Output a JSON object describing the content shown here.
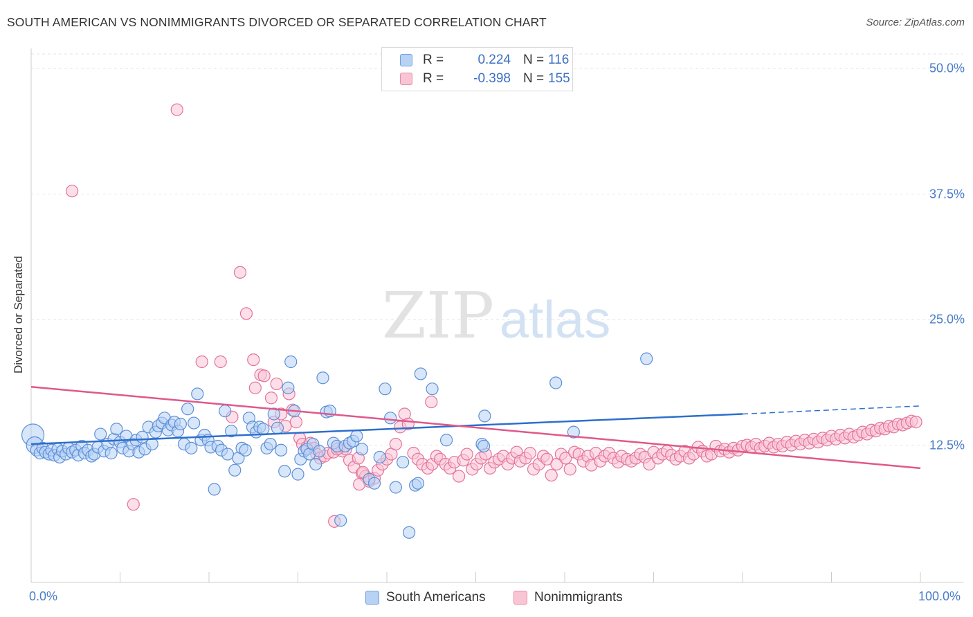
{
  "title": "SOUTH AMERICAN VS NONIMMIGRANTS DIVORCED OR SEPARATED CORRELATION CHART",
  "source": "Source: ZipAtlas.com",
  "watermark": {
    "zip": "ZIP",
    "atlas": "atlas"
  },
  "legend": {
    "r_label": "R =",
    "n_label": "N =",
    "rows": [
      {
        "r": "0.224",
        "n": "116",
        "swatch_fill": "#b8d2f5",
        "swatch_stroke": "#6f9edc"
      },
      {
        "r": "-0.398",
        "n": "155",
        "swatch_fill": "#f9c5d5",
        "swatch_stroke": "#e88aa6"
      }
    ]
  },
  "bottom_legend": [
    "South Americans",
    "Nonimmigrants"
  ],
  "chart_data": {
    "type": "scatter",
    "title": "SOUTH AMERICAN VS NONIMMIGRANTS DIVORCED OR SEPARATED CORRELATION CHART",
    "xlabel": "",
    "ylabel": "Divorced or Separated",
    "xlim": [
      0,
      100
    ],
    "ylim": [
      0,
      52
    ],
    "x_tick_labels": [
      "0.0%",
      "100.0%"
    ],
    "y_ticks": [
      12.5,
      25.0,
      37.5,
      50.0
    ],
    "y_tick_labels": [
      "12.5%",
      "25.0%",
      "37.5%",
      "50.0%"
    ],
    "grid": true,
    "legend_position": "top-center",
    "series": [
      {
        "name": "South Americans",
        "color": "#5b8fd6",
        "fill": "#b8d2f5",
        "r": 0.224,
        "n": 116,
        "trend": {
          "x0": 0,
          "y0": 12.6,
          "x1": 80,
          "y1": 15.6,
          "dash_to_x": 100,
          "dash_to_y": 16.4,
          "color": "#2d6fcc"
        },
        "points": [
          [
            0.2,
            13.5
          ],
          [
            0.4,
            12.5
          ],
          [
            0.6,
            12.0
          ],
          [
            1.0,
            11.7
          ],
          [
            1.3,
            12.2
          ],
          [
            1.6,
            11.8
          ],
          [
            2.0,
            11.6
          ],
          [
            2.3,
            12.0
          ],
          [
            2.6,
            11.5
          ],
          [
            3.0,
            12.1
          ],
          [
            3.2,
            11.3
          ],
          [
            3.5,
            11.9
          ],
          [
            3.9,
            11.6
          ],
          [
            4.2,
            12.2
          ],
          [
            4.6,
            11.8
          ],
          [
            5.0,
            12.0
          ],
          [
            5.3,
            11.5
          ],
          [
            5.7,
            12.4
          ],
          [
            6.0,
            11.7
          ],
          [
            6.4,
            12.0
          ],
          [
            6.8,
            11.4
          ],
          [
            7.1,
            11.6
          ],
          [
            7.5,
            12.3
          ],
          [
            7.8,
            13.6
          ],
          [
            8.2,
            11.9
          ],
          [
            8.6,
            12.6
          ],
          [
            9.0,
            11.7
          ],
          [
            9.3,
            13.1
          ],
          [
            9.6,
            14.1
          ],
          [
            10.0,
            12.8
          ],
          [
            10.3,
            12.2
          ],
          [
            10.7,
            13.4
          ],
          [
            11.0,
            11.9
          ],
          [
            11.4,
            12.6
          ],
          [
            11.8,
            13.0
          ],
          [
            12.1,
            11.8
          ],
          [
            12.5,
            13.3
          ],
          [
            12.8,
            12.1
          ],
          [
            13.2,
            14.3
          ],
          [
            13.6,
            12.6
          ],
          [
            14.0,
            13.8
          ],
          [
            14.3,
            14.4
          ],
          [
            14.7,
            14.7
          ],
          [
            15.0,
            15.2
          ],
          [
            15.4,
            14.0
          ],
          [
            15.8,
            14.5
          ],
          [
            16.1,
            14.8
          ],
          [
            16.5,
            13.9
          ],
          [
            16.8,
            14.6
          ],
          [
            17.2,
            12.6
          ],
          [
            17.6,
            16.1
          ],
          [
            18.0,
            12.2
          ],
          [
            18.3,
            14.7
          ],
          [
            18.7,
            17.6
          ],
          [
            19.1,
            13.0
          ],
          [
            19.5,
            13.5
          ],
          [
            19.9,
            13.0
          ],
          [
            20.2,
            12.3
          ],
          [
            20.6,
            8.1
          ],
          [
            21.0,
            12.4
          ],
          [
            21.4,
            12.0
          ],
          [
            21.8,
            15.9
          ],
          [
            22.1,
            11.6
          ],
          [
            22.5,
            13.9
          ],
          [
            22.9,
            10.0
          ],
          [
            23.3,
            11.2
          ],
          [
            23.7,
            12.2
          ],
          [
            24.1,
            12.0
          ],
          [
            24.5,
            15.2
          ],
          [
            24.9,
            14.3
          ],
          [
            25.3,
            13.8
          ],
          [
            25.7,
            14.3
          ],
          [
            26.1,
            14.1
          ],
          [
            26.5,
            12.2
          ],
          [
            26.9,
            12.6
          ],
          [
            27.3,
            15.6
          ],
          [
            27.7,
            14.2
          ],
          [
            28.1,
            12.0
          ],
          [
            28.5,
            9.9
          ],
          [
            28.9,
            18.2
          ],
          [
            29.2,
            20.8
          ],
          [
            29.6,
            15.9
          ],
          [
            30.0,
            9.6
          ],
          [
            30.3,
            11.1
          ],
          [
            30.7,
            11.9
          ],
          [
            31.0,
            12.1
          ],
          [
            31.3,
            11.6
          ],
          [
            31.7,
            12.6
          ],
          [
            32.0,
            10.6
          ],
          [
            32.4,
            11.9
          ],
          [
            32.8,
            19.2
          ],
          [
            33.2,
            15.8
          ],
          [
            33.6,
            15.9
          ],
          [
            34.0,
            12.7
          ],
          [
            34.4,
            12.4
          ],
          [
            34.8,
            5.0
          ],
          [
            35.3,
            12.4
          ],
          [
            35.8,
            12.7
          ],
          [
            36.2,
            12.9
          ],
          [
            36.6,
            13.4
          ],
          [
            37.2,
            12.1
          ],
          [
            38.0,
            9.1
          ],
          [
            38.6,
            8.7
          ],
          [
            39.2,
            11.3
          ],
          [
            39.8,
            18.1
          ],
          [
            40.4,
            15.2
          ],
          [
            41.0,
            8.3
          ],
          [
            41.8,
            10.8
          ],
          [
            42.5,
            3.8
          ],
          [
            43.2,
            8.5
          ],
          [
            43.5,
            8.7
          ],
          [
            43.8,
            19.6
          ],
          [
            45.1,
            18.1
          ],
          [
            46.7,
            13.0
          ],
          [
            50.7,
            12.6
          ],
          [
            50.9,
            12.4
          ],
          [
            51.0,
            15.4
          ],
          [
            59.0,
            18.7
          ],
          [
            61.0,
            13.8
          ],
          [
            69.2,
            21.1
          ]
        ]
      },
      {
        "name": "Nonimmigrants",
        "color": "#e3739a",
        "fill": "#f9c5d5",
        "r": -0.398,
        "n": 155,
        "trend": {
          "x0": 0,
          "y0": 18.3,
          "x1": 100,
          "y1": 10.2,
          "color": "#e0588a"
        },
        "points": [
          [
            4.6,
            37.8
          ],
          [
            11.5,
            6.6
          ],
          [
            16.4,
            45.9
          ],
          [
            19.2,
            20.8
          ],
          [
            21.3,
            20.8
          ],
          [
            22.6,
            15.3
          ],
          [
            23.5,
            29.7
          ],
          [
            24.2,
            25.6
          ],
          [
            25.2,
            18.2
          ],
          [
            25.8,
            19.5
          ],
          [
            25.0,
            21.0
          ],
          [
            26.2,
            19.4
          ],
          [
            27.0,
            17.2
          ],
          [
            27.3,
            14.8
          ],
          [
            27.6,
            18.6
          ],
          [
            28.1,
            15.6
          ],
          [
            28.6,
            14.4
          ],
          [
            29.0,
            17.6
          ],
          [
            29.4,
            16.0
          ],
          [
            29.8,
            14.8
          ],
          [
            30.2,
            13.2
          ],
          [
            30.5,
            12.6
          ],
          [
            31.0,
            12.3
          ],
          [
            31.4,
            12.7
          ],
          [
            31.8,
            12.2
          ],
          [
            32.1,
            11.6
          ],
          [
            32.5,
            11.2
          ],
          [
            33.0,
            11.4
          ],
          [
            33.4,
            11.7
          ],
          [
            34.0,
            11.8
          ],
          [
            34.6,
            12.2
          ],
          [
            35.0,
            11.9
          ],
          [
            35.4,
            12.1
          ],
          [
            35.8,
            11.0
          ],
          [
            36.3,
            10.3
          ],
          [
            36.8,
            11.2
          ],
          [
            37.2,
            9.7
          ],
          [
            37.6,
            9.4
          ],
          [
            38.0,
            8.9
          ],
          [
            38.6,
            9.2
          ],
          [
            39.0,
            10.0
          ],
          [
            39.5,
            10.6
          ],
          [
            40.0,
            11.1
          ],
          [
            40.5,
            11.6
          ],
          [
            41.0,
            12.6
          ],
          [
            41.5,
            14.3
          ],
          [
            42.0,
            15.6
          ],
          [
            42.4,
            14.6
          ],
          [
            43.0,
            11.7
          ],
          [
            43.5,
            11.1
          ],
          [
            44.0,
            10.6
          ],
          [
            44.6,
            10.2
          ],
          [
            45.1,
            10.6
          ],
          [
            45.6,
            11.4
          ],
          [
            46.0,
            11.1
          ],
          [
            46.6,
            10.6
          ],
          [
            47.1,
            10.2
          ],
          [
            47.6,
            10.8
          ],
          [
            48.1,
            9.4
          ],
          [
            48.6,
            11.0
          ],
          [
            49.0,
            11.6
          ],
          [
            49.6,
            10.1
          ],
          [
            50.1,
            10.6
          ],
          [
            50.6,
            11.2
          ],
          [
            51.1,
            11.6
          ],
          [
            51.6,
            10.2
          ],
          [
            52.1,
            10.8
          ],
          [
            52.6,
            11.1
          ],
          [
            53.1,
            11.4
          ],
          [
            53.6,
            10.6
          ],
          [
            54.1,
            11.2
          ],
          [
            54.6,
            11.8
          ],
          [
            55.0,
            10.9
          ],
          [
            55.6,
            11.2
          ],
          [
            56.1,
            11.7
          ],
          [
            56.5,
            10.1
          ],
          [
            57.1,
            10.6
          ],
          [
            57.6,
            11.4
          ],
          [
            58.0,
            11.1
          ],
          [
            58.5,
            9.5
          ],
          [
            59.1,
            10.6
          ],
          [
            59.6,
            11.6
          ],
          [
            60.1,
            11.2
          ],
          [
            60.6,
            10.1
          ],
          [
            61.1,
            11.8
          ],
          [
            61.6,
            11.6
          ],
          [
            62.1,
            10.9
          ],
          [
            62.6,
            11.4
          ],
          [
            63.0,
            10.5
          ],
          [
            63.5,
            11.7
          ],
          [
            64.0,
            10.9
          ],
          [
            64.5,
            11.4
          ],
          [
            65.0,
            11.7
          ],
          [
            65.5,
            11.2
          ],
          [
            66.0,
            10.8
          ],
          [
            66.4,
            11.4
          ],
          [
            67.0,
            11.1
          ],
          [
            67.5,
            10.9
          ],
          [
            68.0,
            11.2
          ],
          [
            68.5,
            11.6
          ],
          [
            69.0,
            11.3
          ],
          [
            69.5,
            10.6
          ],
          [
            70.0,
            11.8
          ],
          [
            70.5,
            11.2
          ],
          [
            71.0,
            11.6
          ],
          [
            71.5,
            11.9
          ],
          [
            72.0,
            11.5
          ],
          [
            72.5,
            11.1
          ],
          [
            73.0,
            11.4
          ],
          [
            73.5,
            11.9
          ],
          [
            74.0,
            11.2
          ],
          [
            74.5,
            11.6
          ],
          [
            75.0,
            12.3
          ],
          [
            75.5,
            11.9
          ],
          [
            76.0,
            11.4
          ],
          [
            76.5,
            11.6
          ],
          [
            77.0,
            12.4
          ],
          [
            77.5,
            11.9
          ],
          [
            78.0,
            12.1
          ],
          [
            78.5,
            11.8
          ],
          [
            79.0,
            12.2
          ],
          [
            79.5,
            12.0
          ],
          [
            80.0,
            12.4
          ],
          [
            80.5,
            12.5
          ],
          [
            81.0,
            12.3
          ],
          [
            81.5,
            12.6
          ],
          [
            82.0,
            12.2
          ],
          [
            82.5,
            12.4
          ],
          [
            83.0,
            12.7
          ],
          [
            83.5,
            12.3
          ],
          [
            84.0,
            12.6
          ],
          [
            84.5,
            12.4
          ],
          [
            85.0,
            12.8
          ],
          [
            85.5,
            12.5
          ],
          [
            86.0,
            12.9
          ],
          [
            86.5,
            12.6
          ],
          [
            87.0,
            13.0
          ],
          [
            87.5,
            12.7
          ],
          [
            88.0,
            13.1
          ],
          [
            88.5,
            12.8
          ],
          [
            89.0,
            13.2
          ],
          [
            89.5,
            13.0
          ],
          [
            90.0,
            13.4
          ],
          [
            90.5,
            13.1
          ],
          [
            91.0,
            13.5
          ],
          [
            91.5,
            13.2
          ],
          [
            92.0,
            13.6
          ],
          [
            92.5,
            13.3
          ],
          [
            93.0,
            13.5
          ],
          [
            93.5,
            13.8
          ],
          [
            94.0,
            13.6
          ],
          [
            94.5,
            14.0
          ],
          [
            95.0,
            13.9
          ],
          [
            95.5,
            14.2
          ],
          [
            96.0,
            14.1
          ],
          [
            96.5,
            14.4
          ],
          [
            97.0,
            14.3
          ],
          [
            97.5,
            14.6
          ],
          [
            98.0,
            14.5
          ],
          [
            98.5,
            14.7
          ],
          [
            99.0,
            14.9
          ],
          [
            99.5,
            14.8
          ],
          [
            34.4,
            12.1
          ],
          [
            34.1,
            4.9
          ],
          [
            45.0,
            16.8
          ],
          [
            37.3,
            9.8
          ],
          [
            36.9,
            8.6
          ]
        ]
      }
    ]
  }
}
